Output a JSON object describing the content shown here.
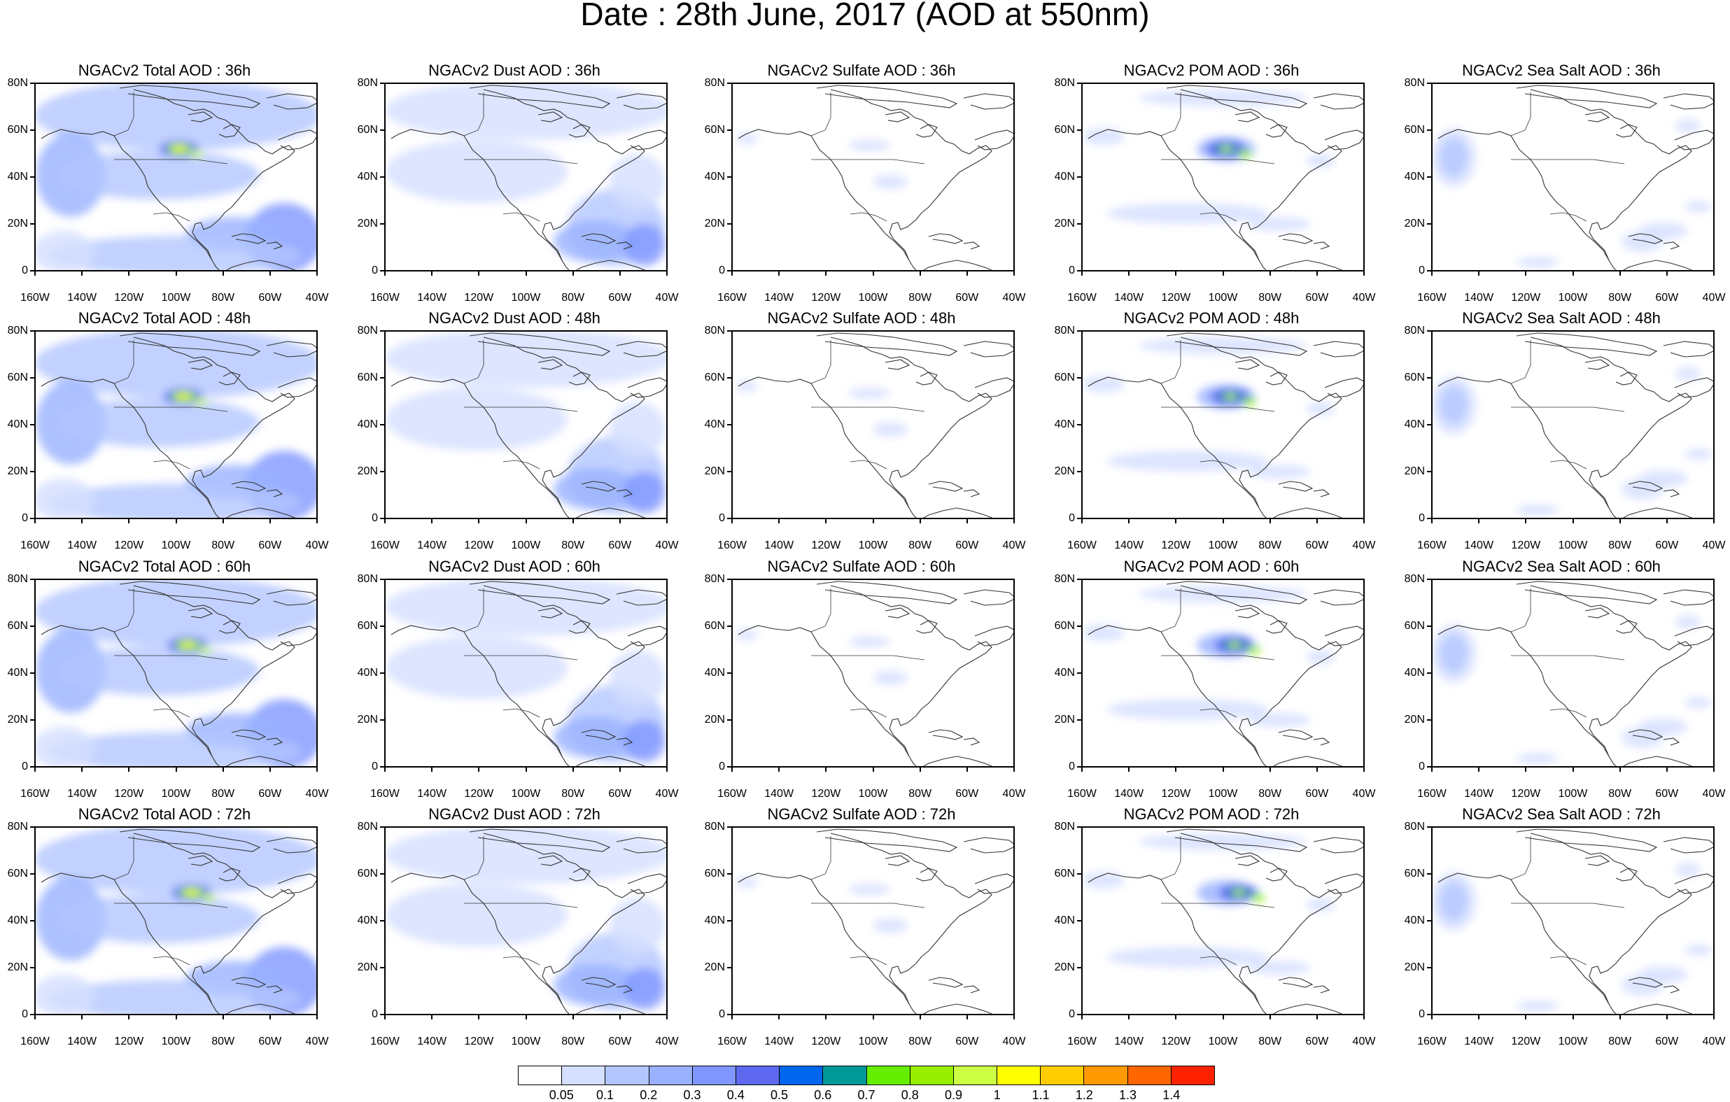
{
  "title": "Date : 28th June, 2017 (AOD at 550nm)",
  "axes": {
    "lat_labels": [
      "80N",
      "60N",
      "40N",
      "20N",
      "0"
    ],
    "lon_labels": [
      "160W",
      "140W",
      "120W",
      "100W",
      "80W",
      "60W",
      "40W"
    ],
    "lon_range": [
      "160W",
      "40W"
    ],
    "lat_range": [
      "0",
      "80N"
    ]
  },
  "rows": [
    {
      "hour": "36h",
      "panels": [
        {
          "title": "NGACv2 Total AOD : 36h",
          "species": "total"
        },
        {
          "title": "NGACv2 Dust AOD : 36h",
          "species": "dust"
        },
        {
          "title": "NGACv2 Sulfate AOD : 36h",
          "species": "sulfate"
        },
        {
          "title": "NGACv2 POM AOD : 36h",
          "species": "pom"
        },
        {
          "title": "NGACv2 Sea Salt AOD : 36h",
          "species": "seasalt"
        }
      ]
    },
    {
      "hour": "48h",
      "panels": [
        {
          "title": "NGACv2 Total AOD : 48h",
          "species": "total"
        },
        {
          "title": "NGACv2 Dust AOD : 48h",
          "species": "dust"
        },
        {
          "title": "NGACv2 Sulfate AOD : 48h",
          "species": "sulfate"
        },
        {
          "title": "NGACv2 POM AOD : 48h",
          "species": "pom"
        },
        {
          "title": "NGACv2 Sea Salt AOD : 48h",
          "species": "seasalt"
        }
      ]
    },
    {
      "hour": "60h",
      "panels": [
        {
          "title": "NGACv2 Total AOD : 60h",
          "species": "total"
        },
        {
          "title": "NGACv2 Dust AOD : 60h",
          "species": "dust"
        },
        {
          "title": "NGACv2 Sulfate AOD : 60h",
          "species": "sulfate"
        },
        {
          "title": "NGACv2 POM AOD : 60h",
          "species": "pom"
        },
        {
          "title": "NGACv2 Sea Salt AOD : 60h",
          "species": "seasalt"
        }
      ]
    },
    {
      "hour": "72h",
      "panels": [
        {
          "title": "NGACv2 Total AOD : 72h",
          "species": "total"
        },
        {
          "title": "NGACv2 Dust AOD : 72h",
          "species": "dust"
        },
        {
          "title": "NGACv2 Sulfate AOD : 72h",
          "species": "sulfate"
        },
        {
          "title": "NGACv2 POM AOD : 72h",
          "species": "pom"
        },
        {
          "title": "NGACv2 Sea Salt  AOD : 72h",
          "species": "seasalt"
        }
      ]
    }
  ],
  "legend": {
    "labels": [
      "0.05",
      "0.1",
      "0.2",
      "0.3",
      "0.4",
      "0.5",
      "0.6",
      "0.7",
      "0.8",
      "0.9",
      "1",
      "1.1",
      "1.2",
      "1.3",
      "1.4"
    ],
    "colors": [
      "#ffffff",
      "#d5dfff",
      "#b3c6ff",
      "#99b1ff",
      "#8097ff",
      "#5e69ef",
      "#0066ee",
      "#009999",
      "#66ee00",
      "#99ee00",
      "#ccff44",
      "#ffff00",
      "#ffcc00",
      "#ff9900",
      "#ff6600",
      "#ff2200"
    ]
  }
}
